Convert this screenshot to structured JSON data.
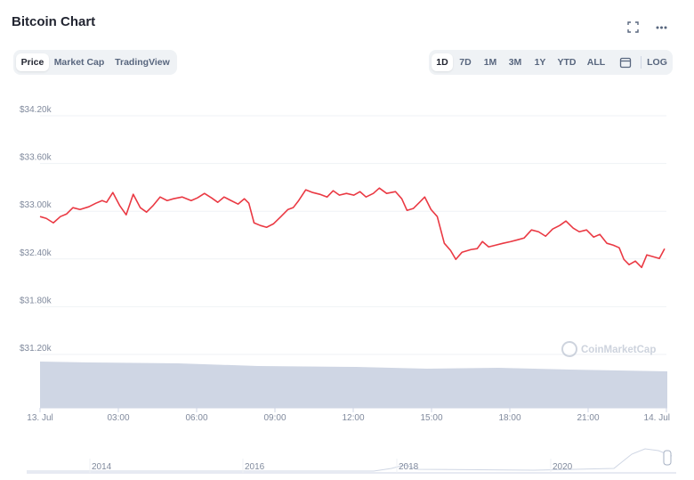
{
  "header": {
    "title": "Bitcoin Chart"
  },
  "tabs": [
    "Price",
    "Market Cap",
    "TradingView"
  ],
  "ranges": [
    "1D",
    "7D",
    "1M",
    "3M",
    "1Y",
    "YTD",
    "ALL"
  ],
  "log_label": "LOG",
  "watermark": "CoinMarketCap",
  "navigator": {
    "labels": [
      "2014",
      "2016",
      "2018",
      "2020"
    ]
  },
  "chart_data": {
    "type": "line",
    "xlim": [
      0,
      24
    ],
    "xticks": [
      {
        "value": 0,
        "label": "13. Jul"
      },
      {
        "value": 3,
        "label": "03:00"
      },
      {
        "value": 6,
        "label": "06:00"
      },
      {
        "value": 9,
        "label": "09:00"
      },
      {
        "value": 12,
        "label": "12:00"
      },
      {
        "value": 15,
        "label": "15:00"
      },
      {
        "value": 18,
        "label": "18:00"
      },
      {
        "value": 21,
        "label": "21:00"
      },
      {
        "value": 24,
        "label": "14. Jul"
      }
    ],
    "ylim": [
      31200,
      34200
    ],
    "yticks": [
      {
        "value": 31200,
        "label": "$31.20k"
      },
      {
        "value": 31800,
        "label": "$31.80k"
      },
      {
        "value": 32400,
        "label": "$32.40k"
      },
      {
        "value": 33000,
        "label": "$33.00k"
      },
      {
        "value": 33600,
        "label": "$33.60k"
      },
      {
        "value": 34200,
        "label": "$34.20k"
      }
    ],
    "grid": true,
    "x": [
      0,
      0.24,
      0.51,
      0.78,
      1.02,
      1.26,
      1.53,
      1.87,
      2.14,
      2.38,
      2.55,
      2.79,
      3.06,
      3.3,
      3.57,
      3.84,
      4.08,
      4.32,
      4.6,
      4.87,
      5.11,
      5.45,
      5.79,
      6.03,
      6.3,
      6.57,
      6.81,
      7.05,
      7.32,
      7.59,
      7.83,
      8.0,
      8.2,
      8.44,
      8.68,
      8.95,
      9.23,
      9.5,
      9.7,
      9.91,
      10.18,
      10.45,
      10.72,
      11.0,
      11.23,
      11.47,
      11.74,
      12.02,
      12.26,
      12.49,
      12.77,
      13.0,
      13.28,
      13.62,
      13.86,
      14.06,
      14.3,
      14.54,
      14.74,
      14.98,
      15.22,
      15.49,
      15.73,
      15.93,
      16.17,
      16.51,
      16.75,
      16.95,
      17.19,
      17.46,
      17.74,
      18.04,
      18.31,
      18.55,
      18.83,
      19.1,
      19.37,
      19.64,
      19.91,
      20.15,
      20.43,
      20.66,
      20.94,
      21.21,
      21.45,
      21.72,
      21.96,
      22.19,
      22.37,
      22.57,
      22.81,
      23.05,
      23.25,
      23.49,
      23.73,
      23.93
    ],
    "series": [
      {
        "name": "Price",
        "color": "#ea3943",
        "values": [
          32933,
          32910,
          32854,
          32933,
          32966,
          33045,
          33022,
          33056,
          33101,
          33134,
          33112,
          33235,
          33067,
          32955,
          33213,
          33045,
          32989,
          33067,
          33179,
          33134,
          33157,
          33179,
          33134,
          33168,
          33224,
          33168,
          33112,
          33179,
          33134,
          33090,
          33157,
          33101,
          32854,
          32821,
          32798,
          32843,
          32933,
          33022,
          33045,
          33134,
          33269,
          33235,
          33213,
          33179,
          33258,
          33202,
          33224,
          33202,
          33246,
          33179,
          33224,
          33291,
          33224,
          33246,
          33157,
          33011,
          33034,
          33112,
          33179,
          33022,
          32933,
          32597,
          32507,
          32395,
          32485,
          32518,
          32530,
          32619,
          32552,
          32574,
          32597,
          32619,
          32642,
          32664,
          32765,
          32742,
          32686,
          32776,
          32821,
          32877,
          32787,
          32742,
          32765,
          32675,
          32709,
          32597,
          32574,
          32541,
          32395,
          32328,
          32373,
          32294,
          32451,
          32429,
          32406,
          32530
        ]
      }
    ]
  }
}
